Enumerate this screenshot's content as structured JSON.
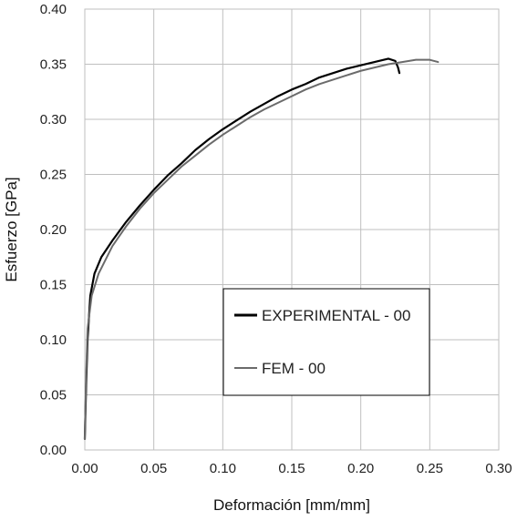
{
  "chart_data": {
    "type": "line",
    "title": "",
    "xlabel": "Deformación [mm/mm]",
    "ylabel": "Esfuerzo [GPa]",
    "xlim": [
      0,
      0.3
    ],
    "ylim": [
      0,
      0.4
    ],
    "x_ticks": [
      "0.00",
      "0.05",
      "0.10",
      "0.15",
      "0.20",
      "0.25",
      "0.30"
    ],
    "y_ticks": [
      "0.00",
      "0.05",
      "0.10",
      "0.15",
      "0.20",
      "0.25",
      "0.30",
      "0.35",
      "0.40"
    ],
    "grid": true,
    "legend": "center-right",
    "series": [
      {
        "name": "EXPERIMENTAL - 00",
        "color": "#000000",
        "points": [
          [
            0.0,
            0.01
          ],
          [
            0.001,
            0.06
          ],
          [
            0.002,
            0.1
          ],
          [
            0.004,
            0.14
          ],
          [
            0.007,
            0.16
          ],
          [
            0.012,
            0.175
          ],
          [
            0.02,
            0.19
          ],
          [
            0.03,
            0.207
          ],
          [
            0.04,
            0.222
          ],
          [
            0.05,
            0.236
          ],
          [
            0.06,
            0.249
          ],
          [
            0.07,
            0.26
          ],
          [
            0.08,
            0.272
          ],
          [
            0.09,
            0.282
          ],
          [
            0.1,
            0.291
          ],
          [
            0.11,
            0.299
          ],
          [
            0.12,
            0.307
          ],
          [
            0.13,
            0.314
          ],
          [
            0.14,
            0.321
          ],
          [
            0.15,
            0.327
          ],
          [
            0.16,
            0.332
          ],
          [
            0.17,
            0.338
          ],
          [
            0.18,
            0.342
          ],
          [
            0.19,
            0.346
          ],
          [
            0.2,
            0.349
          ],
          [
            0.21,
            0.352
          ],
          [
            0.22,
            0.355
          ],
          [
            0.225,
            0.353
          ],
          [
            0.227,
            0.347
          ],
          [
            0.228,
            0.342
          ]
        ]
      },
      {
        "name": "FEM - 00",
        "color": "#6b6b6b",
        "points": [
          [
            0.0,
            0.01
          ],
          [
            0.001,
            0.07
          ],
          [
            0.002,
            0.11
          ],
          [
            0.005,
            0.14
          ],
          [
            0.01,
            0.16
          ],
          [
            0.02,
            0.185
          ],
          [
            0.03,
            0.203
          ],
          [
            0.04,
            0.219
          ],
          [
            0.05,
            0.233
          ],
          [
            0.06,
            0.245
          ],
          [
            0.07,
            0.257
          ],
          [
            0.08,
            0.267
          ],
          [
            0.09,
            0.277
          ],
          [
            0.1,
            0.286
          ],
          [
            0.11,
            0.294
          ],
          [
            0.12,
            0.302
          ],
          [
            0.13,
            0.309
          ],
          [
            0.14,
            0.315
          ],
          [
            0.15,
            0.321
          ],
          [
            0.16,
            0.327
          ],
          [
            0.17,
            0.332
          ],
          [
            0.18,
            0.336
          ],
          [
            0.19,
            0.34
          ],
          [
            0.2,
            0.344
          ],
          [
            0.21,
            0.347
          ],
          [
            0.22,
            0.35
          ],
          [
            0.23,
            0.352
          ],
          [
            0.24,
            0.354
          ],
          [
            0.25,
            0.354
          ],
          [
            0.256,
            0.352
          ]
        ]
      }
    ]
  }
}
